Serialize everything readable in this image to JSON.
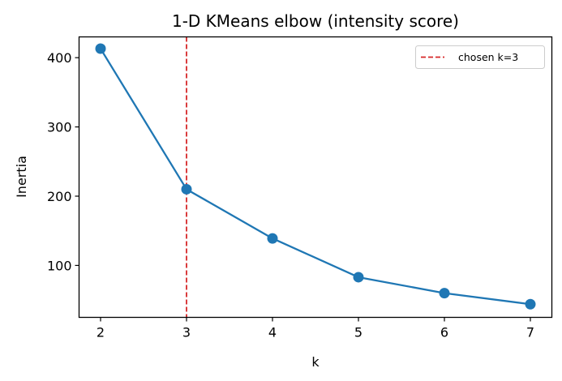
{
  "chart_data": {
    "type": "line",
    "title": "1-D KMeans elbow (intensity score)",
    "xlabel": "k",
    "ylabel": "Inertia",
    "x": [
      2,
      3,
      4,
      5,
      6,
      7
    ],
    "series": [
      {
        "name": "inertia",
        "values": [
          413,
          210,
          139,
          83,
          60,
          44
        ],
        "color": "#1f77b4",
        "marker": "circle"
      }
    ],
    "xticks": [
      "2",
      "3",
      "4",
      "5",
      "6",
      "7"
    ],
    "yticks": [
      "100",
      "200",
      "300",
      "400"
    ],
    "xlim": [
      1.75,
      7.25
    ],
    "ylim": [
      25,
      430
    ],
    "grid": false,
    "annotations": [
      {
        "type": "vline",
        "x": 3,
        "style": "dashed",
        "color": "#d62728",
        "label": "chosen k=3"
      }
    ],
    "legend": {
      "position": "upper right",
      "entries": [
        "chosen k=3"
      ]
    }
  }
}
